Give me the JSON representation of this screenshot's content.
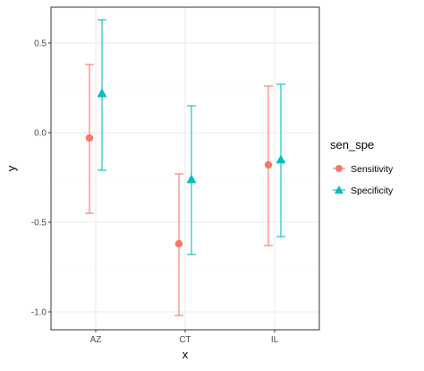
{
  "chart_data": {
    "type": "scatter",
    "subtype": "point-with-errorbars",
    "categories": [
      "AZ",
      "CT",
      "IL"
    ],
    "xlabel": "x",
    "ylabel": "y",
    "ylim": [
      -1.1,
      0.7
    ],
    "yticks": [
      0.5,
      0.0,
      -0.5,
      -1.0
    ],
    "ytick_labels": [
      "0.5",
      "0.0",
      "-0.5",
      "-1.0"
    ],
    "grid": true,
    "legend_title": "sen_spe",
    "legend_position": "right",
    "series": [
      {
        "name": "Sensitivity",
        "color": "#F8766D",
        "marker": "circle",
        "values": [
          -0.03,
          -0.62,
          -0.18
        ],
        "lower": [
          -0.45,
          -1.02,
          -0.63
        ],
        "upper": [
          0.38,
          -0.23,
          0.26
        ]
      },
      {
        "name": "Specificity",
        "color": "#00BFC4",
        "marker": "triangle",
        "values": [
          0.22,
          -0.26,
          -0.15
        ],
        "lower": [
          -0.21,
          -0.68,
          -0.58
        ],
        "upper": [
          0.63,
          0.15,
          0.27
        ]
      }
    ]
  }
}
